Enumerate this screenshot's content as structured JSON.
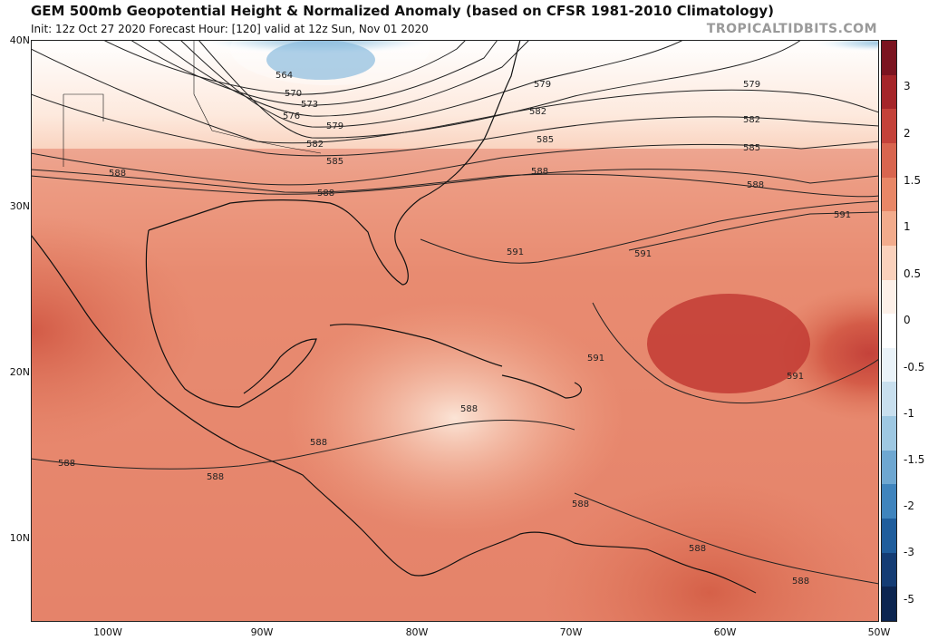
{
  "header": {
    "title": "GEM 500mb Geopotential Height & Normalized Anomaly (based on CFSR 1981-2010 Climatology)",
    "subtitle": "Init: 12z Oct 27 2020   Forecast Hour: [120]   valid at 12z Sun, Nov 01 2020",
    "site": "TROPICALTIDBITS.COM"
  },
  "axes": {
    "lat_labels": [
      "40N",
      "30N",
      "20N",
      "10N"
    ],
    "lon_labels": [
      "100W",
      "90W",
      "80W",
      "70W",
      "60W",
      "50W"
    ]
  },
  "colorbar": {
    "labels": [
      "3",
      "2",
      "1.5",
      "1",
      "0.5",
      "0",
      "-0.5",
      "-1",
      "-1.5",
      "-2",
      "-3",
      "-5"
    ],
    "colors": [
      "#7b1420",
      "#a52529",
      "#c4423a",
      "#d8654f",
      "#e88767",
      "#f2ab8c",
      "#fad1bc",
      "#fdf0e8",
      "#ffffff",
      "#eaf3f9",
      "#c8dfee",
      "#9ec8e2",
      "#6ea7d1",
      "#3f84bd",
      "#1f5d9c",
      "#143c74",
      "#0c2550"
    ]
  },
  "contours": {
    "labels": [
      "564",
      "570",
      "573",
      "576",
      "579",
      "582",
      "585",
      "588",
      "591"
    ]
  },
  "contour_label_positions": [
    {
      "text": "564"
    },
    {
      "text": "570"
    },
    {
      "text": "573"
    },
    {
      "text": "576"
    },
    {
      "text": "579"
    },
    {
      "text": "582"
    },
    {
      "text": "585"
    },
    {
      "text": "588"
    },
    {
      "text": "588"
    },
    {
      "text": "579"
    },
    {
      "text": "582"
    },
    {
      "text": "585"
    },
    {
      "text": "588"
    },
    {
      "text": "591"
    },
    {
      "text": "591"
    },
    {
      "text": "591"
    },
    {
      "text": "591"
    },
    {
      "text": "591"
    },
    {
      "text": "579"
    },
    {
      "text": "582"
    },
    {
      "text": "585"
    },
    {
      "text": "588"
    },
    {
      "text": "588"
    },
    {
      "text": "588"
    },
    {
      "text": "588"
    },
    {
      "text": "588"
    },
    {
      "text": "588"
    },
    {
      "text": "588"
    },
    {
      "text": "588"
    }
  ]
}
